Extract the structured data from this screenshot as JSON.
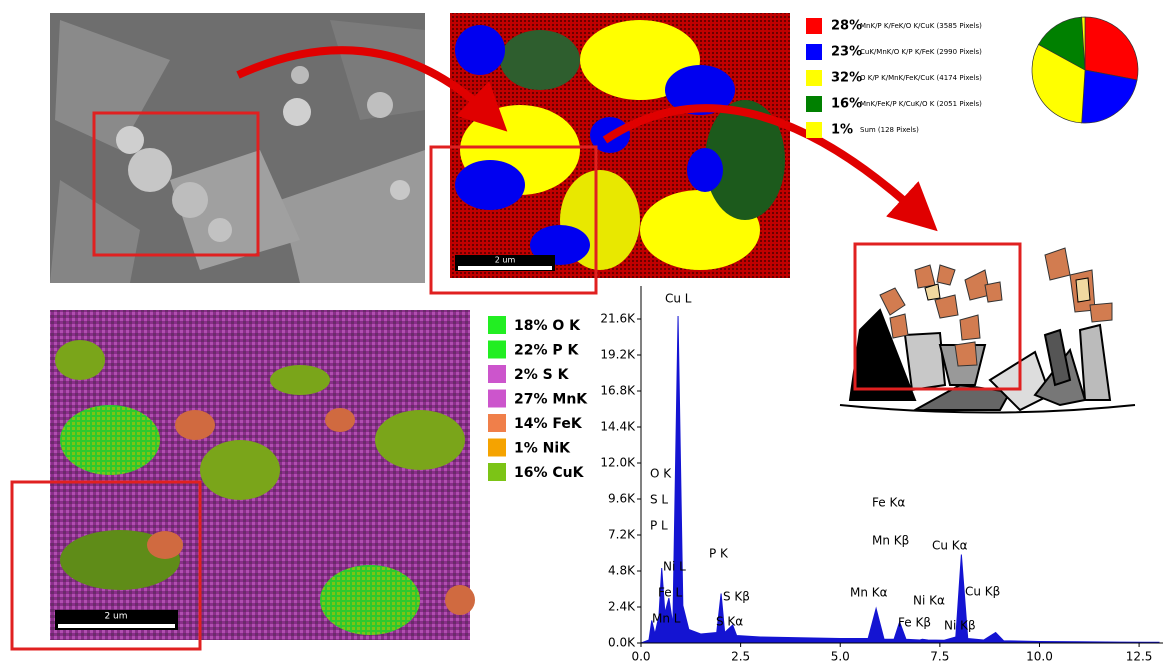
{
  "sem_image": {
    "scale_bar": "2 um"
  },
  "element_map": {
    "scale_bar": "2 um",
    "legend": [
      {
        "label": "18% O K",
        "color": "#22ee22"
      },
      {
        "label": "22% P K",
        "color": "#22ee22"
      },
      {
        "label": "2% S K",
        "color": "#cc55cc"
      },
      {
        "label": "27% MnK",
        "color": "#cc55cc"
      },
      {
        "label": "14% FeK",
        "color": "#f07f4a"
      },
      {
        "label": "1% NiK",
        "color": "#f5a300"
      },
      {
        "label": "16% CuK",
        "color": "#7cc416"
      }
    ]
  },
  "chart_data": [
    {
      "type": "pie",
      "categories": [
        "MnK/P K/FeK/O K/CuK (3585 Pixels)",
        "CuK/MnK/O K/P K/FeK (2990 Pixels)",
        "O K/P K/MnK/FeK/CuK (4174 Pixels)",
        "MnK/FeK/P K/CuK/O K (2051 Pixels)",
        "Sum (128 Pixels)"
      ],
      "values": [
        28,
        23,
        32,
        16,
        1
      ],
      "value_labels": [
        "28%",
        "23%",
        "32%",
        "16%",
        "1%"
      ],
      "colors": [
        "#ff0000",
        "#0000ff",
        "#ffff00",
        "#008000",
        "#ffff00"
      ]
    },
    {
      "type": "area",
      "color": "#1414d2",
      "x": [
        0,
        0.2,
        0.27,
        0.35,
        0.45,
        0.52,
        0.6,
        0.7,
        0.8,
        0.93,
        1.05,
        1.2,
        1.5,
        1.9,
        2.01,
        2.1,
        2.3,
        2.4,
        3,
        4,
        5,
        5.7,
        5.9,
        6.1,
        6.35,
        6.49,
        6.65,
        7,
        7.06,
        7.2,
        7.6,
        7.9,
        8.04,
        8.2,
        8.6,
        8.9,
        9.1,
        10,
        11,
        12,
        13
      ],
      "values": [
        0,
        200,
        1500,
        600,
        1800,
        5000,
        2000,
        3000,
        1200,
        21800,
        2500,
        900,
        600,
        700,
        3300,
        700,
        1200,
        500,
        400,
        350,
        300,
        300,
        2300,
        250,
        250,
        1400,
        250,
        200,
        250,
        200,
        180,
        400,
        5900,
        300,
        200,
        700,
        150,
        100,
        80,
        60,
        50
      ],
      "xlim": [
        0,
        13.1
      ],
      "ylim": [
        0,
        23800
      ],
      "xticks": [
        {
          "value": 0,
          "label": "0.0"
        },
        {
          "value": 2.5,
          "label": "2.5"
        },
        {
          "value": 5,
          "label": "5.0"
        },
        {
          "value": 7.5,
          "label": "7.5"
        },
        {
          "value": 10,
          "label": "10.0"
        },
        {
          "value": 12.5,
          "label": "12.5"
        }
      ],
      "yticks": [
        {
          "value": 0,
          "label": "0.0K"
        },
        {
          "value": 2400,
          "label": "2.4K"
        },
        {
          "value": 4800,
          "label": "4.8K"
        },
        {
          "value": 7200,
          "label": "7.2K"
        },
        {
          "value": 9600,
          "label": "9.6K"
        },
        {
          "value": 12000,
          "label": "12.0K"
        },
        {
          "value": 14400,
          "label": "14.4K"
        },
        {
          "value": 16800,
          "label": "16.8K"
        },
        {
          "value": 19200,
          "label": "19.2K"
        },
        {
          "value": 21600,
          "label": "21.6K"
        }
      ],
      "annotations": [
        "Cu L",
        "O K",
        "S L",
        "P L",
        "Ni L",
        "Fe L",
        "Mn L",
        "P K",
        "S Kβ",
        "S Kα",
        "Fe Kα",
        "Mn Kβ",
        "Mn Kα",
        "Cu Kα",
        "Ni Kα",
        "Fe Kβ",
        "Ni Kβ",
        "Cu Kβ"
      ]
    }
  ]
}
